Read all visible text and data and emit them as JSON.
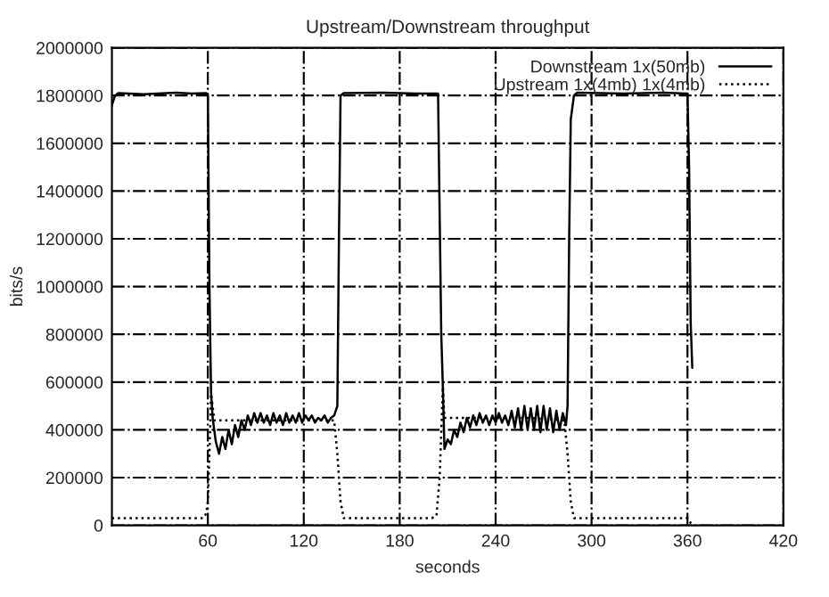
{
  "chart_data": {
    "type": "line",
    "title": "Upstream/Downstream throughput",
    "xlabel": "seconds",
    "ylabel": "bits/s",
    "xlim": [
      0,
      420
    ],
    "xticks": [
      60,
      120,
      180,
      240,
      300,
      360,
      420
    ],
    "ylim": [
      0,
      2000000
    ],
    "yticks": [
      0,
      200000,
      400000,
      600000,
      800000,
      1000000,
      1200000,
      1400000,
      1600000,
      1800000,
      2000000
    ],
    "grid": true,
    "legend": "top right",
    "series": [
      {
        "name": "Downstream 1x(50mb)",
        "color": "#000000",
        "line_style": "solid",
        "x": [
          0,
          2,
          4,
          20,
          40,
          50,
          59,
          60,
          61,
          62,
          63,
          65,
          67,
          69,
          71,
          73,
          75,
          77,
          79,
          81,
          83,
          85,
          87,
          89,
          91,
          93,
          95,
          97,
          99,
          101,
          103,
          105,
          107,
          109,
          111,
          113,
          115,
          117,
          119,
          121,
          123,
          125,
          127,
          129,
          131,
          133,
          135,
          137,
          139,
          141,
          142,
          143,
          145,
          170,
          190,
          204,
          205,
          206,
          207,
          208,
          210,
          212,
          214,
          216,
          218,
          220,
          222,
          224,
          226,
          228,
          230,
          232,
          234,
          236,
          238,
          240,
          242,
          244,
          246,
          248,
          250,
          252,
          254,
          256,
          258,
          260,
          262,
          264,
          266,
          268,
          270,
          272,
          274,
          276,
          278,
          280,
          282,
          284,
          285,
          286,
          287,
          289,
          291,
          320,
          345,
          360,
          361,
          362,
          363
        ],
        "values": [
          1760000,
          1800000,
          1810000,
          1805000,
          1812000,
          1808000,
          1810000,
          1800000,
          1000000,
          560000,
          450000,
          350000,
          300000,
          370000,
          320000,
          400000,
          340000,
          420000,
          370000,
          440000,
          400000,
          460000,
          420000,
          470000,
          430000,
          470000,
          430000,
          460000,
          420000,
          470000,
          430000,
          460000,
          420000,
          470000,
          430000,
          460000,
          430000,
          470000,
          430000,
          460000,
          440000,
          460000,
          430000,
          450000,
          440000,
          460000,
          430000,
          450000,
          460000,
          500000,
          1200000,
          1800000,
          1810000,
          1812000,
          1808000,
          1808000,
          1300000,
          800000,
          580000,
          320000,
          360000,
          340000,
          400000,
          370000,
          430000,
          390000,
          450000,
          410000,
          460000,
          420000,
          470000,
          430000,
          460000,
          420000,
          460000,
          430000,
          470000,
          430000,
          460000,
          420000,
          480000,
          410000,
          490000,
          400000,
          500000,
          400000,
          490000,
          400000,
          500000,
          390000,
          500000,
          400000,
          490000,
          390000,
          480000,
          400000,
          470000,
          420000,
          500000,
          1200000,
          1700000,
          1800000,
          1812000,
          1808000,
          1812000,
          1808000,
          1500000,
          850000,
          660000
        ]
      },
      {
        "name": "Upstream 1x(4mb) 1x(4mb)",
        "color": "#000000",
        "line_style": "dotted",
        "x": [
          0,
          30,
          57,
          59,
          60,
          61,
          62,
          63,
          64,
          70,
          100,
          139,
          141,
          143,
          145,
          170,
          200,
          203,
          205,
          207,
          208,
          220,
          260,
          283,
          285,
          287,
          289,
          320,
          358,
          360,
          362,
          363
        ],
        "values": [
          30000,
          30000,
          30000,
          50000,
          100000,
          300000,
          550000,
          500000,
          440000,
          440000,
          440000,
          440000,
          300000,
          100000,
          30000,
          30000,
          30000,
          40000,
          200000,
          580000,
          450000,
          450000,
          450000,
          440000,
          300000,
          100000,
          30000,
          30000,
          30000,
          30000,
          10000,
          0
        ]
      }
    ]
  }
}
